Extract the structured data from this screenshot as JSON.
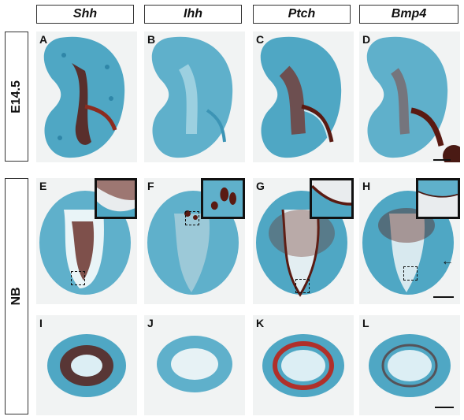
{
  "columns": [
    "Shh",
    "Ihh",
    "Ptch",
    "Bmp4"
  ],
  "rows": [
    "E14.5",
    "NB"
  ],
  "panels": {
    "A": "A",
    "B": "B",
    "C": "C",
    "D": "D",
    "E": "E",
    "F": "F",
    "G": "G",
    "H": "H",
    "I": "I",
    "J": "J",
    "K": "K",
    "L": "L"
  },
  "colors": {
    "tissue": "#4fa7c4",
    "tissue_dark": "#2f86a8",
    "stain": "#5a1a12",
    "stain_red": "#b0302a",
    "background": "#f1f3f3"
  },
  "icons": [
    "arrow-left-icon"
  ]
}
